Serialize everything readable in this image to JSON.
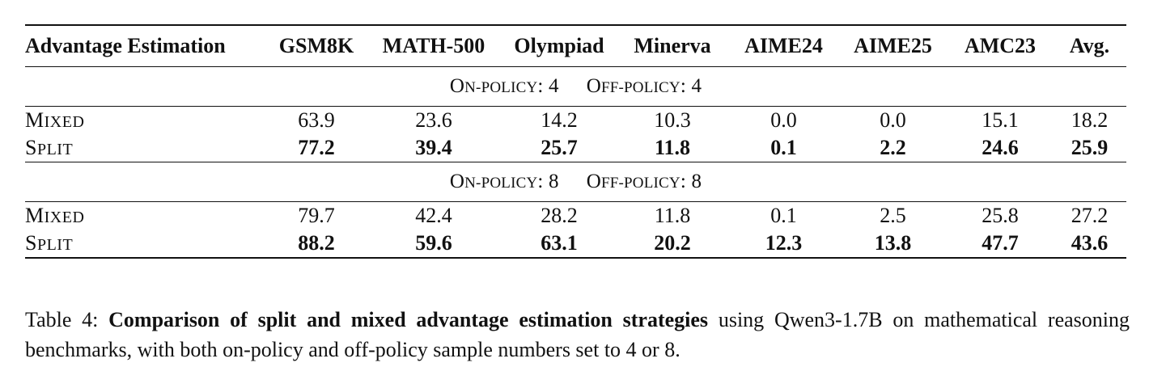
{
  "table": {
    "columns": [
      "Advantage Estimation",
      "GSM8K",
      "MATH-500",
      "Olympiad",
      "Minerva",
      "AIME24",
      "AIME25",
      "AMC23",
      "Avg."
    ],
    "groups": [
      {
        "on_label_cap": "O",
        "on_label_rest": "N-POLICY",
        "on_value": ": 4",
        "off_label_cap": "O",
        "off_label_rest": "FF-POLICY",
        "off_value": ": 4",
        "rows": [
          {
            "method_cap": "M",
            "method_rest": "IXED",
            "values": [
              "63.9",
              "23.6",
              "14.2",
              "10.3",
              "0.0",
              "0.0",
              "15.1",
              "18.2"
            ],
            "bold": false
          },
          {
            "method_cap": "S",
            "method_rest": "PLIT",
            "values": [
              "77.2",
              "39.4",
              "25.7",
              "11.8",
              "0.1",
              "2.2",
              "24.6",
              "25.9"
            ],
            "bold": true
          }
        ]
      },
      {
        "on_label_cap": "O",
        "on_label_rest": "N-POLICY",
        "on_value": ": 8",
        "off_label_cap": "O",
        "off_label_rest": "FF-POLICY",
        "off_value": ": 8",
        "rows": [
          {
            "method_cap": "M",
            "method_rest": "IXED",
            "values": [
              "79.7",
              "42.4",
              "28.2",
              "11.8",
              "0.1",
              "2.5",
              "25.8",
              "27.2"
            ],
            "bold": false
          },
          {
            "method_cap": "S",
            "method_rest": "PLIT",
            "values": [
              "88.2",
              "59.6",
              "63.1",
              "20.2",
              "12.3",
              "13.8",
              "47.7",
              "43.6"
            ],
            "bold": true
          }
        ]
      }
    ]
  },
  "caption": {
    "prefix": "Table 4: ",
    "bold": "Comparison of split and mixed advantage estimation strategies",
    "rest": " using Qwen3-1.7B on mathematical reasoning benchmarks, with both on-policy and off-policy sample numbers set to 4 or 8."
  }
}
